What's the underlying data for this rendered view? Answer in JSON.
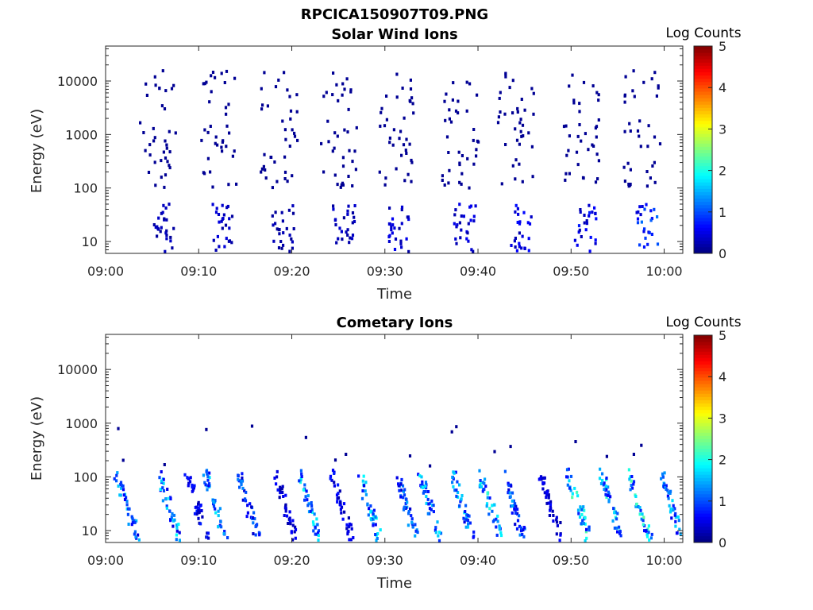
{
  "figure": {
    "title": "RPCICA150907T09.PNG"
  },
  "chart_data": [
    {
      "type": "heatmap",
      "title": "Solar Wind Ions",
      "xlabel": "Time",
      "ylabel": "Energy (eV)",
      "x_range": [
        "09:00",
        "10:02"
      ],
      "x_ticks": [
        "09:00",
        "09:10",
        "09:20",
        "09:30",
        "09:40",
        "09:50",
        "10:00"
      ],
      "y_scale": "log",
      "ylim": [
        6,
        45000
      ],
      "y_ticks": [
        "10",
        "100",
        "1000",
        "10000"
      ],
      "colorbar": {
        "label": "Log Counts",
        "range": [
          0,
          5
        ],
        "ticks": [
          "0",
          "1",
          "2",
          "3",
          "4",
          "5"
        ],
        "colormap": "jet"
      },
      "series": [
        {
          "clusters": [
            {
              "center_minute": 5.5,
              "low_energy_peak": 0.4,
              "high_energy_scatter": "sparse"
            },
            {
              "center_minute": 12.0,
              "low_energy_peak": 0.5,
              "high_energy_scatter": "sparse"
            },
            {
              "center_minute": 18.5,
              "low_energy_peak": 0.3,
              "high_energy_scatter": "sparse"
            },
            {
              "center_minute": 25.0,
              "low_energy_peak": 0.4,
              "high_energy_scatter": "sparse"
            },
            {
              "center_minute": 31.0,
              "low_energy_peak": 0.6,
              "high_energy_scatter": "sparse"
            },
            {
              "center_minute": 38.0,
              "low_energy_peak": 0.6,
              "high_energy_scatter": "sparse"
            },
            {
              "center_minute": 44.0,
              "low_energy_peak": 0.7,
              "high_energy_scatter": "sparse"
            },
            {
              "center_minute": 51.0,
              "low_energy_peak": 0.8,
              "high_energy_scatter": "sparse"
            },
            {
              "center_minute": 57.5,
              "low_energy_peak": 1.2,
              "high_energy_scatter": "sparse"
            }
          ]
        }
      ]
    },
    {
      "type": "heatmap",
      "title": "Cometary Ions",
      "xlabel": "Time",
      "ylabel": "Energy (eV)",
      "x_range": [
        "09:00",
        "10:02"
      ],
      "x_ticks": [
        "09:00",
        "09:10",
        "09:20",
        "09:30",
        "09:40",
        "09:50",
        "10:00"
      ],
      "y_scale": "log",
      "ylim": [
        6,
        45000
      ],
      "y_ticks": [
        "10",
        "100",
        "1000",
        "10000"
      ],
      "colorbar": {
        "label": "Log Counts",
        "range": [
          0,
          5
        ],
        "ticks": [
          "0",
          "1",
          "2",
          "3",
          "4",
          "5"
        ],
        "colormap": "jet"
      },
      "series": [
        {
          "clusters": [
            {
              "center_minute": 2.0,
              "peak": 1.8
            },
            {
              "center_minute": 6.5,
              "peak": 1.9
            },
            {
              "center_minute": 9.5,
              "peak": 0.8
            },
            {
              "center_minute": 11.5,
              "peak": 1.8
            },
            {
              "center_minute": 15.0,
              "peak": 1.3
            },
            {
              "center_minute": 19.0,
              "peak": 0.7
            },
            {
              "center_minute": 21.5,
              "peak": 2.0
            },
            {
              "center_minute": 25.0,
              "peak": 0.8
            },
            {
              "center_minute": 28.0,
              "peak": 2.0
            },
            {
              "center_minute": 32.0,
              "peak": 1.5
            },
            {
              "center_minute": 34.5,
              "peak": 1.9
            },
            {
              "center_minute": 38.0,
              "peak": 1.8
            },
            {
              "center_minute": 41.0,
              "peak": 2.1
            },
            {
              "center_minute": 43.5,
              "peak": 1.5
            },
            {
              "center_minute": 47.5,
              "peak": 0.7
            },
            {
              "center_minute": 50.5,
              "peak": 2.3
            },
            {
              "center_minute": 54.0,
              "peak": 2.2
            },
            {
              "center_minute": 57.0,
              "peak": 2.4
            },
            {
              "center_minute": 60.5,
              "peak": 1.8
            }
          ]
        }
      ]
    }
  ]
}
